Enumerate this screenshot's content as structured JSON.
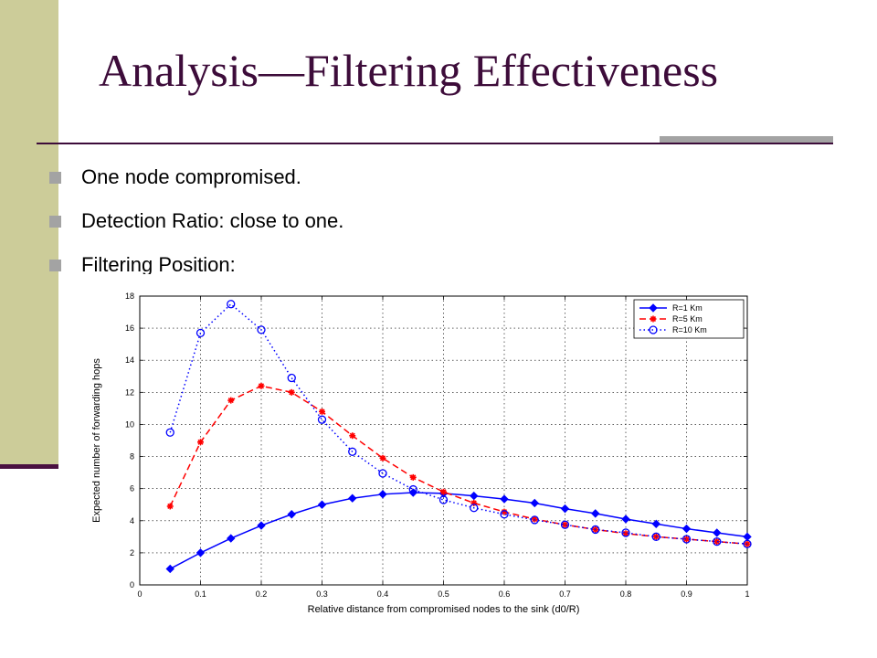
{
  "slide": {
    "title": "Analysis—Filtering Effectiveness",
    "bullets": [
      "One node compromised.",
      "Detection Ratio: close to one.",
      "Filtering Position:"
    ]
  },
  "chart_data": {
    "type": "line",
    "xlabel": "Relative distance from compromised nodes to the sink (d0/R)",
    "ylabel": "Expected number of forwarding hops",
    "xlim": [
      0,
      1
    ],
    "ylim": [
      0,
      18
    ],
    "xticks": [
      "0",
      "0.1",
      "0.2",
      "0.3",
      "0.4",
      "0.5",
      "0.6",
      "0.7",
      "0.8",
      "0.9",
      "1"
    ],
    "yticks": [
      "0",
      "2",
      "4",
      "6",
      "8",
      "10",
      "12",
      "14",
      "16",
      "18"
    ],
    "grid": true,
    "legend_position": "top-right",
    "x": [
      0.05,
      0.1,
      0.15,
      0.2,
      0.25,
      0.3,
      0.35,
      0.4,
      0.45,
      0.5,
      0.55,
      0.6,
      0.65,
      0.7,
      0.75,
      0.8,
      0.85,
      0.9,
      0.95,
      1.0
    ],
    "series": [
      {
        "name": "R=1 Km",
        "color": "#0000ff",
        "line": "solid",
        "marker": "diamond",
        "values": [
          1.0,
          2.0,
          2.9,
          3.7,
          4.4,
          5.0,
          5.4,
          5.65,
          5.75,
          5.7,
          5.55,
          5.35,
          5.1,
          4.75,
          4.45,
          4.1,
          3.8,
          3.5,
          3.25,
          3.0
        ]
      },
      {
        "name": "R=5 Km",
        "color": "#ff0000",
        "line": "dashed",
        "marker": "star",
        "values": [
          4.9,
          8.9,
          11.5,
          12.4,
          12.0,
          10.8,
          9.3,
          7.9,
          6.7,
          5.8,
          5.1,
          4.55,
          4.1,
          3.75,
          3.45,
          3.2,
          3.0,
          2.85,
          2.7,
          2.55
        ]
      },
      {
        "name": "R=10 Km",
        "color": "#0000ff",
        "line": "dotted",
        "marker": "circle",
        "values": [
          9.5,
          15.7,
          17.5,
          15.9,
          12.9,
          10.3,
          8.3,
          6.95,
          5.95,
          5.3,
          4.8,
          4.4,
          4.05,
          3.75,
          3.45,
          3.25,
          3.0,
          2.85,
          2.7,
          2.55
        ]
      }
    ]
  }
}
